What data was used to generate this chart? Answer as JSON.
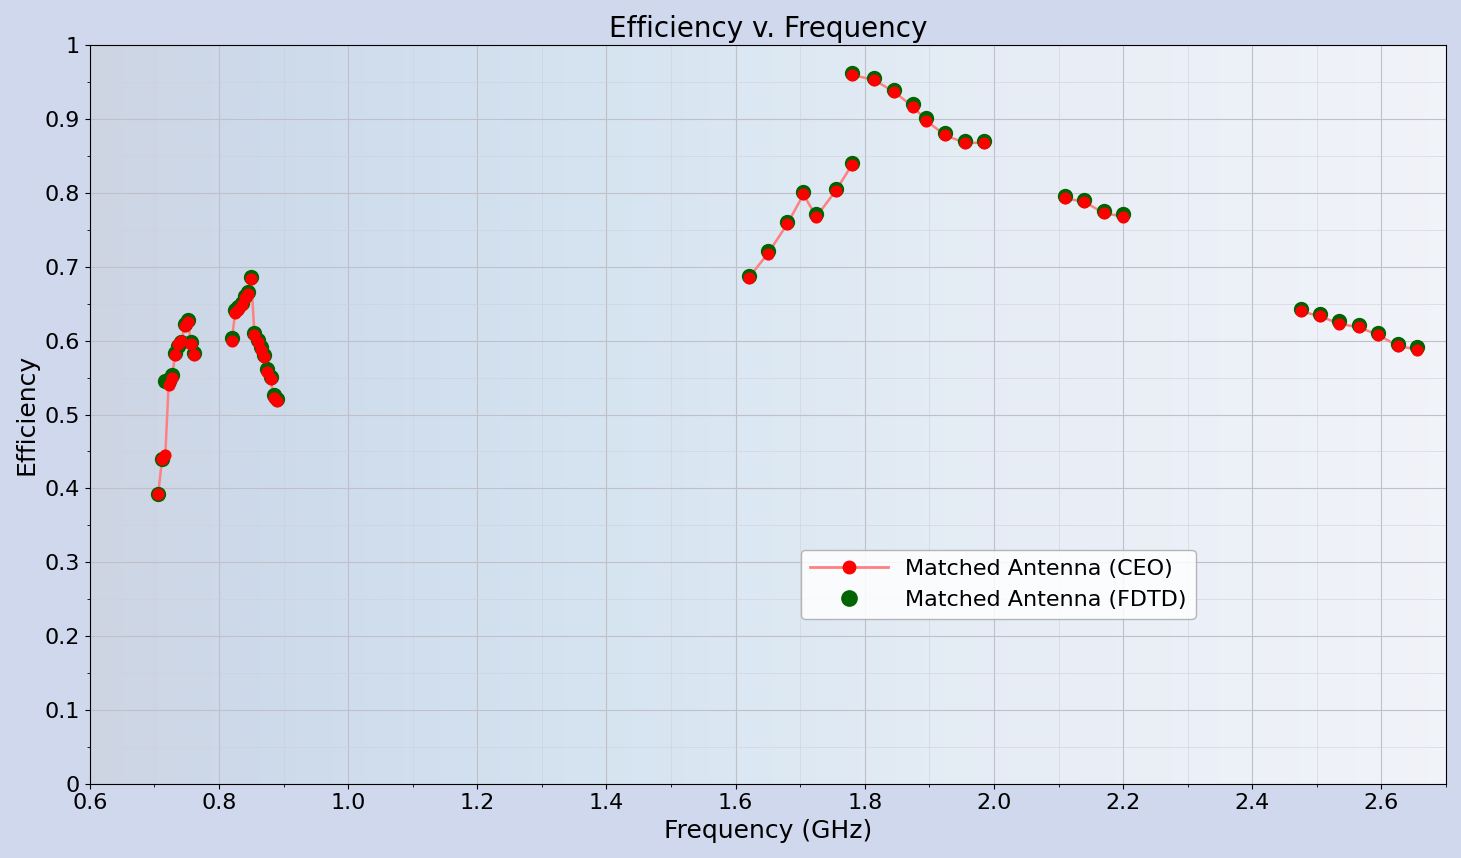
{
  "title": "Efficiency v. Frequency",
  "xlabel": "Frequency (GHz)",
  "ylabel": "Efficiency",
  "xlim": [
    0.6,
    2.7
  ],
  "ylim": [
    0,
    1
  ],
  "xticks": [
    0.6,
    0.8,
    1.0,
    1.2,
    1.4,
    1.6,
    1.8,
    2.0,
    2.2,
    2.4,
    2.6
  ],
  "yticks": [
    0,
    0.1,
    0.2,
    0.3,
    0.4,
    0.5,
    0.6,
    0.7,
    0.8,
    0.9,
    1.0
  ],
  "bg_color_top": "#dde2f0",
  "bg_color_bottom": "#eef0f8",
  "plot_bg_color": "#f5f5ff",
  "ceo_line_color": "#ff8080",
  "ceo_dot_color": "#ff0000",
  "fdtd_color": "#006400",
  "ceo_segments": [
    {
      "x": [
        0.706,
        0.712,
        0.717,
        0.722,
        0.727,
        0.732,
        0.737,
        0.742,
        0.747,
        0.752,
        0.757,
        0.762
      ],
      "y": [
        0.393,
        0.44,
        0.445,
        0.54,
        0.55,
        0.58,
        0.595,
        0.6,
        0.62,
        0.625,
        0.595,
        0.58
      ]
    },
    {
      "x": [
        0.82,
        0.825,
        0.83,
        0.835,
        0.84,
        0.845,
        0.85,
        0.855,
        0.86,
        0.865,
        0.87,
        0.875,
        0.88,
        0.885,
        0.89
      ],
      "y": [
        0.6,
        0.638,
        0.642,
        0.648,
        0.658,
        0.663,
        0.683,
        0.608,
        0.598,
        0.588,
        0.578,
        0.558,
        0.548,
        0.523,
        0.518
      ]
    },
    {
      "x": [
        1.62,
        1.65,
        1.68,
        1.705,
        1.725,
        1.755,
        1.78
      ],
      "y": [
        0.685,
        0.718,
        0.758,
        0.798,
        0.768,
        0.803,
        0.838
      ]
    },
    {
      "x": [
        1.78,
        1.815,
        1.845,
        1.875,
        1.895,
        1.925,
        1.955,
        1.985
      ],
      "y": [
        0.96,
        0.953,
        0.937,
        0.917,
        0.898,
        0.878,
        0.868,
        0.868
      ]
    },
    {
      "x": [
        2.11,
        2.14,
        2.17,
        2.2
      ],
      "y": [
        0.793,
        0.788,
        0.773,
        0.768
      ]
    },
    {
      "x": [
        2.475,
        2.505,
        2.535,
        2.565,
        2.595,
        2.625,
        2.655
      ],
      "y": [
        0.64,
        0.633,
        0.623,
        0.618,
        0.608,
        0.593,
        0.588
      ]
    }
  ],
  "fdtd_segments": [
    {
      "x": [
        0.706,
        0.712,
        0.717,
        0.722,
        0.727,
        0.732,
        0.737,
        0.742,
        0.747,
        0.752,
        0.757,
        0.762
      ],
      "y": [
        0.393,
        0.44,
        0.545,
        0.545,
        0.553,
        0.583,
        0.593,
        0.598,
        0.623,
        0.628,
        0.598,
        0.583
      ]
    },
    {
      "x": [
        0.82,
        0.825,
        0.83,
        0.835,
        0.84,
        0.845,
        0.85,
        0.855,
        0.86,
        0.865,
        0.87,
        0.875,
        0.88,
        0.885,
        0.89
      ],
      "y": [
        0.603,
        0.641,
        0.645,
        0.651,
        0.661,
        0.666,
        0.686,
        0.611,
        0.601,
        0.591,
        0.581,
        0.561,
        0.551,
        0.526,
        0.521
      ]
    },
    {
      "x": [
        1.62,
        1.65,
        1.68,
        1.705,
        1.725,
        1.755,
        1.78
      ],
      "y": [
        0.688,
        0.721,
        0.761,
        0.801,
        0.771,
        0.806,
        0.841
      ]
    },
    {
      "x": [
        1.78,
        1.815,
        1.845,
        1.875,
        1.895,
        1.925,
        1.955,
        1.985
      ],
      "y": [
        0.963,
        0.956,
        0.94,
        0.92,
        0.901,
        0.881,
        0.871,
        0.871
      ]
    },
    {
      "x": [
        2.11,
        2.14,
        2.17,
        2.2
      ],
      "y": [
        0.796,
        0.791,
        0.776,
        0.771
      ]
    },
    {
      "x": [
        2.475,
        2.505,
        2.535,
        2.565,
        2.595,
        2.625,
        2.655
      ],
      "y": [
        0.643,
        0.636,
        0.626,
        0.621,
        0.611,
        0.596,
        0.591
      ]
    }
  ],
  "legend_labels": [
    "Matched Antenna (CEO)",
    "Matched Antenna (FDTD)"
  ],
  "title_fontsize": 20,
  "label_fontsize": 18,
  "tick_fontsize": 16,
  "legend_fontsize": 16
}
